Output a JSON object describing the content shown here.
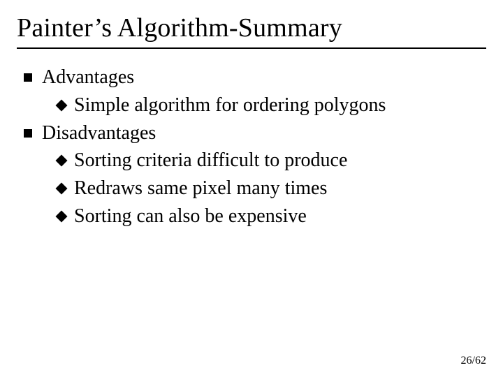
{
  "title": "Painter’s Algorithm-Summary",
  "list": {
    "items": [
      {
        "label": "Advantages",
        "sub": [
          {
            "label": "Simple algorithm for ordering polygons"
          }
        ]
      },
      {
        "label": "Disadvantages",
        "sub": [
          {
            "label": "Sorting criteria difficult to produce"
          },
          {
            "label": "Redraws same pixel many times"
          },
          {
            "label": "Sorting can also be expensive"
          }
        ]
      }
    ]
  },
  "page": {
    "current": 26,
    "total": 62,
    "display": "26/62"
  },
  "style": {
    "background_color": "#ffffff",
    "text_color": "#000000",
    "title_fontsize_pt": 28,
    "body_fontsize_pt": 21,
    "pagenum_fontsize_pt": 12,
    "font_family": "Times New Roman",
    "rule_color": "#000000",
    "l1_bullet": "square",
    "l2_bullet": "diamond"
  }
}
